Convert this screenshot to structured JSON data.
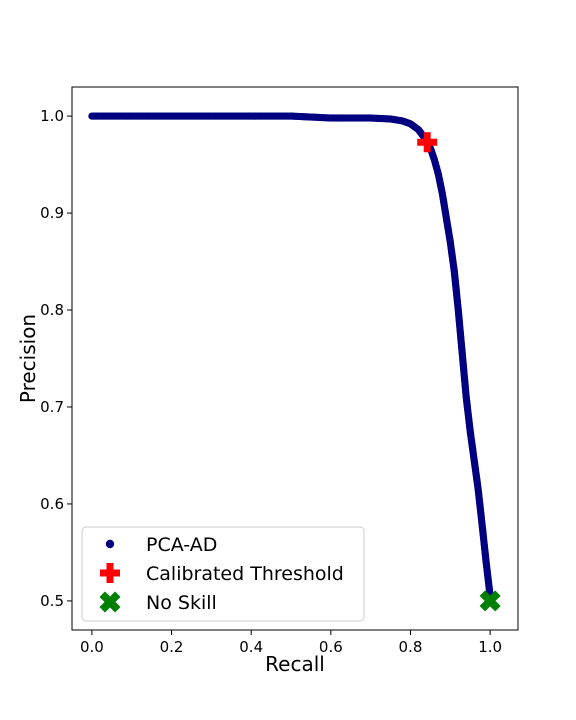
{
  "chart_data": {
    "type": "scatter",
    "xlabel": "Recall",
    "ylabel": "Precision",
    "xlim": [
      -0.05,
      1.07
    ],
    "ylim": [
      0.47,
      1.03
    ],
    "xticks": [
      0.0,
      0.2,
      0.4,
      0.6,
      0.8,
      1.0
    ],
    "xtick_labels": [
      "0.0",
      "0.2",
      "0.4",
      "0.6",
      "0.8",
      "1.0"
    ],
    "yticks": [
      0.5,
      0.6,
      0.7,
      0.8,
      0.9,
      1.0
    ],
    "ytick_labels": [
      "0.5",
      "0.6",
      "0.7",
      "0.8",
      "0.9",
      "1.0"
    ],
    "grid": false,
    "legend_position": "lower-left",
    "series": [
      {
        "name": "PCA-AD",
        "marker": "circle",
        "color": "#000080",
        "x": [
          0.0,
          0.1,
          0.2,
          0.3,
          0.4,
          0.5,
          0.55,
          0.6,
          0.65,
          0.7,
          0.75,
          0.78,
          0.8,
          0.82,
          0.84,
          0.85,
          0.86,
          0.87,
          0.88,
          0.89,
          0.9,
          0.91,
          0.92,
          0.93,
          0.94,
          0.95,
          0.96,
          0.97,
          0.98,
          0.99,
          1.0
        ],
        "y": [
          1.0,
          1.0,
          1.0,
          1.0,
          1.0,
          1.0,
          0.999,
          0.998,
          0.998,
          0.998,
          0.997,
          0.995,
          0.992,
          0.986,
          0.975,
          0.967,
          0.955,
          0.94,
          0.92,
          0.895,
          0.87,
          0.84,
          0.8,
          0.755,
          0.71,
          0.675,
          0.645,
          0.615,
          0.578,
          0.54,
          0.505
        ]
      },
      {
        "name": "Calibrated Threshold",
        "marker": "plus",
        "color": "#ff0000",
        "x": [
          0.842
        ],
        "y": [
          0.973
        ]
      },
      {
        "name": "No Skill",
        "marker": "x",
        "color": "#008000",
        "x": [
          1.0
        ],
        "y": [
          0.5
        ]
      }
    ]
  }
}
